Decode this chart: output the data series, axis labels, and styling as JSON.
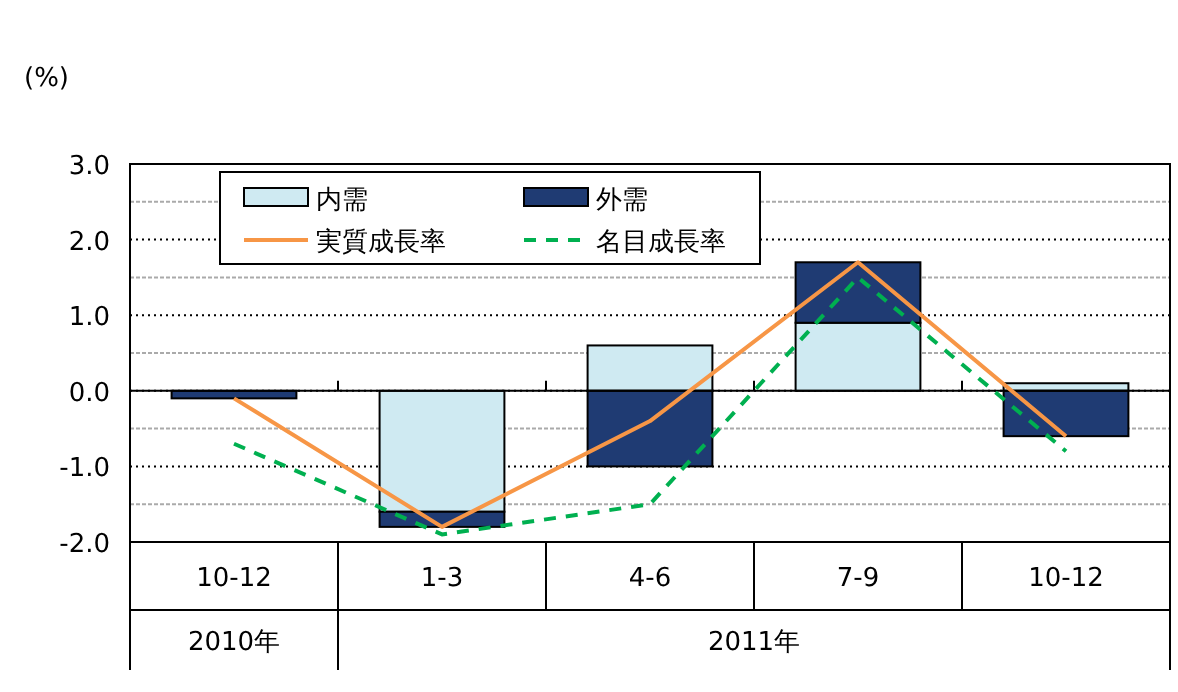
{
  "chart_data": {
    "type": "bar",
    "stacked": true,
    "ylabel": "(%)",
    "categories": [
      "10-12",
      "1-3",
      "4-6",
      "7-9",
      "10-12"
    ],
    "series": [
      {
        "name": "内需",
        "color": "#cfeaf2",
        "values": [
          0.0,
          -1.6,
          0.6,
          0.9,
          0.1
        ]
      },
      {
        "name": "外需",
        "color": "#1f3b73",
        "values": [
          -0.1,
          -0.2,
          -1.0,
          0.8,
          -0.6
        ]
      },
      {
        "name": "実質成長率",
        "type": "line",
        "line_style": "solid",
        "color": "#f79646",
        "values": [
          -0.1,
          -1.8,
          -0.4,
          1.7,
          -0.6
        ]
      },
      {
        "name": "名目成長率",
        "type": "line",
        "line_style": "dashed",
        "color": "#00b050",
        "values": [
          -0.7,
          -1.9,
          -1.5,
          1.5,
          -0.8
        ]
      }
    ],
    "ylim": [
      -2,
      3
    ],
    "yticks": [
      {
        "value": -2,
        "label": "-2.0"
      },
      {
        "value": -1,
        "label": "-1.0"
      },
      {
        "value": 0,
        "label": "0.0"
      },
      {
        "value": 1,
        "label": "1.0"
      },
      {
        "value": 2,
        "label": "2.0"
      },
      {
        "value": 3,
        "label": "3.0"
      }
    ],
    "grid": "y",
    "legend": "top left",
    "annotations": [
      "2010年",
      "2011年"
    ]
  }
}
